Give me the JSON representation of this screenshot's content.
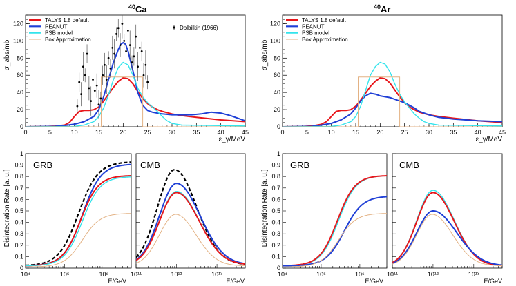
{
  "colors": {
    "talys": "#e8161b",
    "peanut": "#1f3fd6",
    "psb": "#33e4ec",
    "box": "#e3b284",
    "data_points": "#000000",
    "dashed": "#000000"
  },
  "chart_data": [
    {
      "id": "ca_sigma",
      "type": "line",
      "title": "Ca",
      "title_superscript": "40",
      "xlabel": "ε_γ/MeV",
      "ylabel": "σ_abs/mb",
      "xlim": [
        0,
        45
      ],
      "ylim": [
        0,
        130
      ],
      "xticks": [
        0,
        5,
        10,
        15,
        20,
        25,
        30,
        35,
        40,
        45
      ],
      "yticks": [
        0,
        20,
        40,
        60,
        80,
        100,
        120
      ],
      "legend_position": "top-left",
      "legend": [
        "TALYS 1.8 default",
        "PEANUT",
        "PSB model",
        "Box Approximation"
      ],
      "data_legend": "Dolbilkin (1966)",
      "series": [
        {
          "name": "TALYS 1.8 default",
          "color_key": "talys",
          "x": [
            0,
            4,
            6,
            8,
            9,
            10,
            11,
            12,
            13,
            14,
            15,
            16,
            17,
            18,
            19,
            20,
            21,
            22,
            23,
            24,
            25,
            26,
            27,
            28,
            30,
            32,
            35,
            40,
            45
          ],
          "y": [
            0,
            0.3,
            0.8,
            2,
            5,
            12,
            18,
            19,
            19,
            20,
            23,
            30,
            38,
            46,
            53,
            57,
            56,
            50,
            41,
            33,
            27,
            23,
            20,
            18,
            15,
            13,
            11,
            8,
            6
          ]
        },
        {
          "name": "PEANUT",
          "color_key": "peanut",
          "x": [
            0,
            6,
            8,
            10,
            12,
            14,
            15,
            16,
            17,
            18,
            19,
            19.5,
            20,
            20.5,
            21,
            22,
            23,
            24,
            25,
            26,
            27,
            28,
            30,
            32,
            34,
            36,
            38,
            40,
            42,
            44,
            45
          ],
          "y": [
            0,
            0.5,
            1.5,
            3,
            6,
            12,
            20,
            35,
            55,
            75,
            90,
            96,
            98,
            96,
            88,
            65,
            40,
            25,
            19,
            17,
            16,
            15,
            14,
            14,
            14,
            15,
            17,
            16,
            13,
            9,
            7
          ]
        },
        {
          "name": "PSB model",
          "color_key": "psb",
          "x": [
            0,
            10,
            12,
            14,
            15,
            16,
            17,
            18,
            19,
            20,
            21,
            22,
            23,
            24,
            25,
            26,
            27,
            28,
            29,
            30,
            31,
            32,
            45
          ],
          "y": [
            0,
            0.5,
            2,
            6,
            12,
            22,
            37,
            55,
            69,
            75,
            72,
            60,
            45,
            35,
            28,
            23,
            18,
            12,
            7,
            4,
            3,
            2,
            1
          ]
        },
        {
          "name": "Box Approximation",
          "color_key": "box",
          "x": [
            0,
            15.5,
            15.5,
            24,
            24,
            45
          ],
          "y": [
            0,
            0,
            58,
            58,
            0,
            0
          ]
        },
        {
          "name": "Dolbilkin (1966)",
          "color_key": "data_points",
          "style": "points",
          "x": [
            10.6,
            11.0,
            11.4,
            11.8,
            12.2,
            12.6,
            13.0,
            13.4,
            13.8,
            14.2,
            14.6,
            15.0,
            15.4,
            15.8,
            16.2,
            16.6,
            17.0,
            17.4,
            17.8,
            18.2,
            18.6,
            19.0,
            19.4,
            19.8,
            20.2,
            20.6,
            21.0,
            21.4,
            21.8,
            22.2,
            22.6,
            23.0,
            23.4,
            23.8,
            24.2,
            24.6,
            25.0
          ],
          "y": [
            24,
            52,
            38,
            70,
            60,
            85,
            45,
            30,
            55,
            42,
            48,
            26,
            33,
            60,
            72,
            55,
            80,
            68,
            92,
            85,
            108,
            115,
            95,
            120,
            100,
            88,
            112,
            95,
            75,
            82,
            105,
            70,
            92,
            88,
            60,
            72,
            52
          ]
        }
      ]
    },
    {
      "id": "ar_sigma",
      "type": "line",
      "title": "Ar",
      "title_superscript": "40",
      "xlabel": "ε_γ/MeV",
      "ylabel": "σ_abs/mb",
      "xlim": [
        0,
        45
      ],
      "ylim": [
        0,
        130
      ],
      "xticks": [
        0,
        5,
        10,
        15,
        20,
        25,
        30,
        35,
        40,
        45
      ],
      "yticks": [
        0,
        20,
        40,
        60,
        80,
        100,
        120
      ],
      "legend_position": "top-left",
      "legend": [
        "TALYS 1.8 default",
        "PEANUT",
        "PSB model",
        "Box Approximation"
      ],
      "series": [
        {
          "name": "TALYS 1.8 default",
          "color_key": "talys",
          "x": [
            0,
            4,
            6,
            8,
            9,
            10,
            11,
            12,
            13,
            14,
            15,
            16,
            17,
            18,
            19,
            20,
            21,
            22,
            23,
            24,
            25,
            26,
            27,
            28,
            30,
            32,
            35,
            40,
            45
          ],
          "y": [
            0,
            0.3,
            1,
            3,
            6,
            12,
            18,
            19,
            19,
            20,
            24,
            31,
            39,
            47,
            53,
            57,
            56,
            51,
            43,
            35,
            28,
            23,
            20,
            17,
            14,
            12,
            10,
            7,
            5
          ]
        },
        {
          "name": "PEANUT",
          "color_key": "peanut",
          "x": [
            0,
            6,
            8,
            10,
            12,
            14,
            15,
            16,
            17,
            18,
            19,
            20,
            21,
            22,
            23,
            24,
            25,
            26,
            27,
            28,
            30,
            32,
            35,
            40,
            45
          ],
          "y": [
            0,
            0.5,
            2,
            4,
            8,
            15,
            22,
            30,
            36,
            39,
            38,
            36,
            35,
            34,
            32,
            30,
            28,
            25,
            22,
            18,
            14,
            11,
            9,
            7,
            6
          ]
        },
        {
          "name": "PSB model",
          "color_key": "psb",
          "x": [
            0,
            10,
            12,
            14,
            15,
            16,
            17,
            18,
            19,
            20,
            21,
            22,
            23,
            24,
            25,
            26,
            27,
            28,
            29,
            30,
            31,
            32,
            45
          ],
          "y": [
            0,
            0.5,
            2,
            6,
            12,
            24,
            42,
            60,
            70,
            75,
            73,
            64,
            50,
            38,
            29,
            22,
            15,
            10,
            6,
            4,
            3,
            2,
            1
          ]
        },
        {
          "name": "Box Approximation",
          "color_key": "box",
          "x": [
            0,
            15.5,
            15.5,
            24,
            24,
            45
          ],
          "y": [
            0,
            0,
            58,
            58,
            0,
            0
          ]
        }
      ]
    },
    {
      "id": "ca_grb",
      "type": "line",
      "label": "GRB",
      "xlabel": "E/GeV",
      "ylabel": "Disintegration Rate [a. u.]",
      "xscale": "log",
      "xlim": [
        10000,
        5000000
      ],
      "ylim": [
        0,
        1
      ],
      "xtick_labels": [
        "10⁴",
        "10⁵",
        "10⁶"
      ],
      "xtick_values": [
        10000,
        100000,
        1000000
      ],
      "yticks": [
        0,
        0.1,
        0.2,
        0.3,
        0.4,
        0.5,
        0.6,
        0.7,
        0.8,
        0.9,
        1
      ],
      "series": [
        {
          "name": "Dashed reference",
          "color_key": "dashed",
          "style": "dashed",
          "shape": "sigmoid",
          "center_log": 5.35,
          "width": 0.55,
          "y0": 0.02,
          "ymax": 0.93
        },
        {
          "name": "PEANUT",
          "color_key": "peanut",
          "shape": "sigmoid",
          "center_log": 5.45,
          "width": 0.52,
          "y0": 0.02,
          "ymax": 0.91
        },
        {
          "name": "TALYS 1.8 default",
          "color_key": "talys",
          "shape": "sigmoid",
          "center_log": 5.4,
          "width": 0.5,
          "y0": 0.02,
          "ymax": 0.81
        },
        {
          "name": "PSB model",
          "color_key": "psb",
          "shape": "sigmoid",
          "center_log": 5.45,
          "width": 0.5,
          "y0": 0.02,
          "ymax": 0.8
        },
        {
          "name": "Box Approximation",
          "color_key": "box",
          "shape": "sigmoid",
          "center_log": 5.45,
          "width": 0.5,
          "y0": 0.01,
          "ymax": 0.48
        }
      ]
    },
    {
      "id": "ca_cmb",
      "type": "line",
      "label": "CMB",
      "xlabel": "E/GeV",
      "xscale": "log",
      "xlim": [
        100000000000,
        50000000000000
      ],
      "ylim": [
        0,
        1
      ],
      "xtick_labels": [
        "10¹¹",
        "10¹²",
        "10¹³"
      ],
      "xtick_values": [
        100000000000,
        1000000000000,
        10000000000000
      ],
      "series": [
        {
          "name": "Dashed reference",
          "color_key": "dashed",
          "style": "dashed",
          "shape": "bump",
          "center_log": 11.95,
          "wl": 0.42,
          "wr": 0.55,
          "base": 0.03,
          "peak": 0.86
        },
        {
          "name": "PEANUT",
          "color_key": "peanut",
          "shape": "bump",
          "center_log": 12.0,
          "wl": 0.42,
          "wr": 0.58,
          "base": 0.03,
          "peak": 0.74
        },
        {
          "name": "PSB model",
          "color_key": "psb",
          "shape": "bump",
          "center_log": 12.0,
          "wl": 0.42,
          "wr": 0.56,
          "base": 0.03,
          "peak": 0.67
        },
        {
          "name": "TALYS 1.8 default",
          "color_key": "talys",
          "shape": "bump",
          "center_log": 12.0,
          "wl": 0.42,
          "wr": 0.56,
          "base": 0.03,
          "peak": 0.66
        },
        {
          "name": "Box Approximation",
          "color_key": "box",
          "shape": "bump",
          "center_log": 11.98,
          "wl": 0.4,
          "wr": 0.5,
          "base": 0.02,
          "peak": 0.47
        }
      ]
    },
    {
      "id": "ar_grb",
      "type": "line",
      "label": "GRB",
      "xlabel": "E/GeV",
      "ylabel": "Disintegration Rate [a. u.]",
      "xscale": "log",
      "xlim": [
        10000,
        5000000
      ],
      "ylim": [
        0,
        1
      ],
      "xtick_labels": [
        "10⁴",
        "10⁵",
        "10⁶"
      ],
      "xtick_values": [
        10000,
        100000,
        1000000
      ],
      "yticks": [
        0,
        0.1,
        0.2,
        0.3,
        0.4,
        0.5,
        0.6,
        0.7,
        0.8,
        0.9,
        1
      ],
      "series": [
        {
          "name": "PSB model",
          "color_key": "psb",
          "shape": "sigmoid",
          "center_log": 5.45,
          "width": 0.5,
          "y0": 0.02,
          "ymax": 0.81
        },
        {
          "name": "TALYS 1.8 default",
          "color_key": "talys",
          "shape": "sigmoid",
          "center_log": 5.42,
          "width": 0.5,
          "y0": 0.02,
          "ymax": 0.81
        },
        {
          "name": "PEANUT",
          "color_key": "peanut",
          "shape": "sigmoid",
          "center_log": 5.6,
          "width": 0.52,
          "y0": 0.02,
          "ymax": 0.63
        },
        {
          "name": "Box Approximation",
          "color_key": "box",
          "shape": "sigmoid",
          "center_log": 5.45,
          "width": 0.5,
          "y0": 0.01,
          "ymax": 0.48
        }
      ]
    },
    {
      "id": "ar_cmb",
      "type": "line",
      "label": "CMB",
      "xlabel": "E/GeV",
      "xscale": "log",
      "xlim": [
        100000000000,
        50000000000000
      ],
      "ylim": [
        0,
        1
      ],
      "xtick_labels": [
        "10¹¹",
        "10¹²",
        "10¹³"
      ],
      "xtick_values": [
        100000000000,
        1000000000000,
        10000000000000
      ],
      "series": [
        {
          "name": "PSB model",
          "color_key": "psb",
          "shape": "bump",
          "center_log": 12.0,
          "wl": 0.4,
          "wr": 0.52,
          "base": 0.02,
          "peak": 0.68
        },
        {
          "name": "TALYS 1.8 default",
          "color_key": "talys",
          "shape": "bump",
          "center_log": 12.0,
          "wl": 0.4,
          "wr": 0.52,
          "base": 0.02,
          "peak": 0.66
        },
        {
          "name": "PEANUT",
          "color_key": "peanut",
          "shape": "bump",
          "center_log": 12.0,
          "wl": 0.4,
          "wr": 0.58,
          "base": 0.02,
          "peak": 0.5
        },
        {
          "name": "Box Approximation",
          "color_key": "box",
          "shape": "bump",
          "center_log": 11.98,
          "wl": 0.38,
          "wr": 0.5,
          "base": 0.02,
          "peak": 0.47
        }
      ]
    }
  ]
}
